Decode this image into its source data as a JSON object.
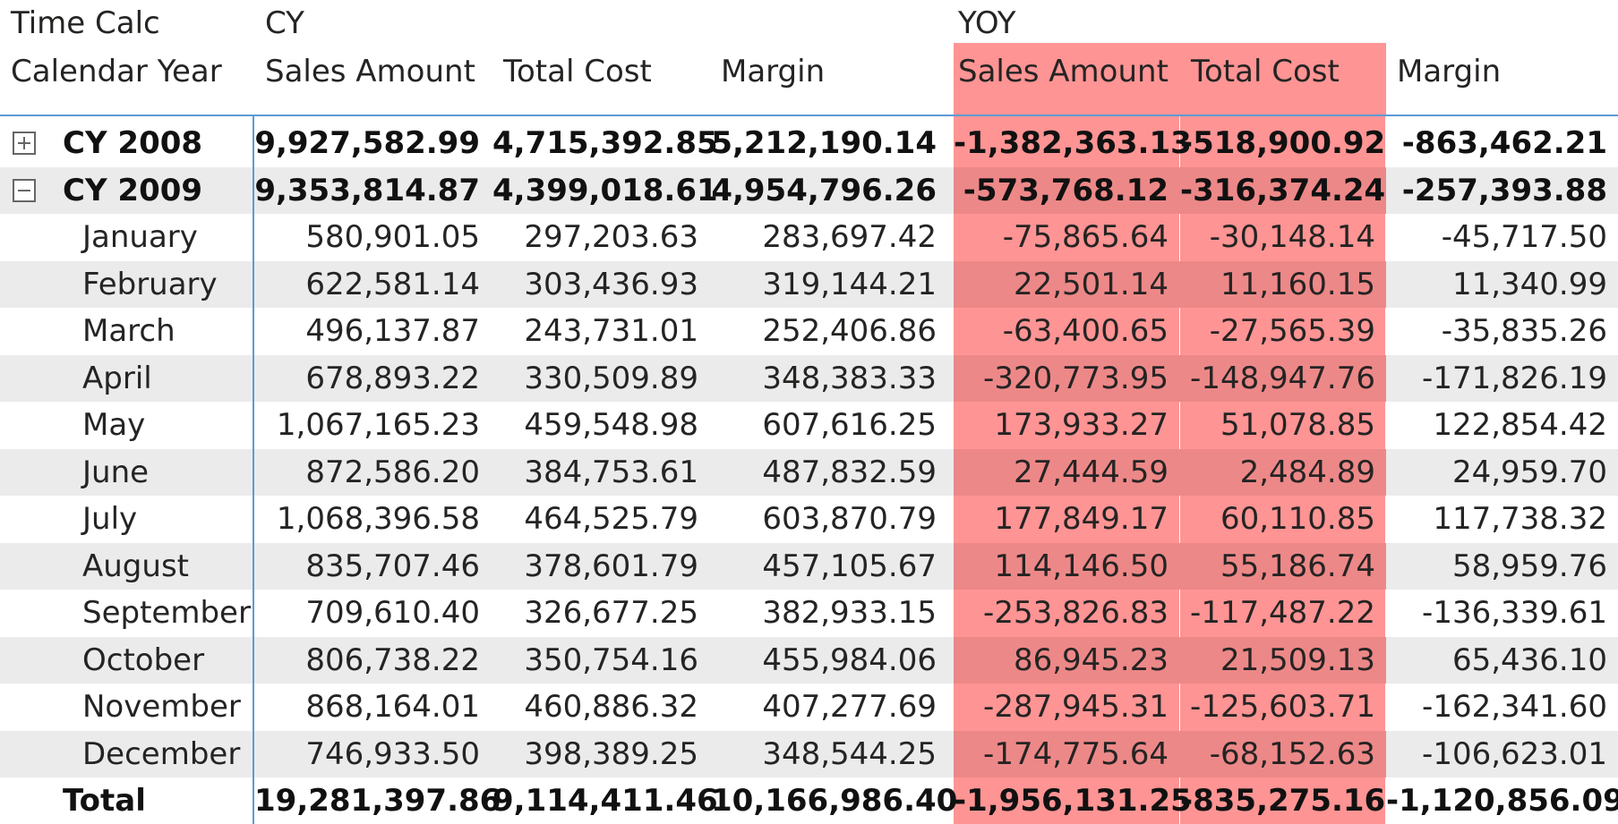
{
  "matrix": {
    "header": {
      "corner_top": "Time Calc",
      "corner_bottom": "Calendar Year",
      "groups": [
        "CY",
        "YOY"
      ],
      "columns": [
        "Sales Amount",
        "Total Cost",
        "Margin",
        "Sales Amount",
        "Total Cost",
        "Margin"
      ]
    },
    "highlight_color": "#ff9494",
    "header_line_color": "#5b9bd5",
    "rows": [
      {
        "label": "CY 2008",
        "level": 0,
        "bold": true,
        "toggle": "expand",
        "values": [
          "9,927,582.99",
          "4,715,392.85",
          "5,212,190.14",
          "-1,382,363.13",
          "-518,900.92",
          "-863,462.21"
        ]
      },
      {
        "label": "CY 2009",
        "level": 0,
        "bold": true,
        "toggle": "collapse",
        "values": [
          "9,353,814.87",
          "4,399,018.61",
          "4,954,796.26",
          "-573,768.12",
          "-316,374.24",
          "-257,393.88"
        ]
      },
      {
        "label": "January",
        "level": 1,
        "values": [
          "580,901.05",
          "297,203.63",
          "283,697.42",
          "-75,865.64",
          "-30,148.14",
          "-45,717.50"
        ]
      },
      {
        "label": "February",
        "level": 1,
        "values": [
          "622,581.14",
          "303,436.93",
          "319,144.21",
          "22,501.14",
          "11,160.15",
          "11,340.99"
        ]
      },
      {
        "label": "March",
        "level": 1,
        "values": [
          "496,137.87",
          "243,731.01",
          "252,406.86",
          "-63,400.65",
          "-27,565.39",
          "-35,835.26"
        ]
      },
      {
        "label": "April",
        "level": 1,
        "values": [
          "678,893.22",
          "330,509.89",
          "348,383.33",
          "-320,773.95",
          "-148,947.76",
          "-171,826.19"
        ]
      },
      {
        "label": "May",
        "level": 1,
        "values": [
          "1,067,165.23",
          "459,548.98",
          "607,616.25",
          "173,933.27",
          "51,078.85",
          "122,854.42"
        ]
      },
      {
        "label": "June",
        "level": 1,
        "values": [
          "872,586.20",
          "384,753.61",
          "487,832.59",
          "27,444.59",
          "2,484.89",
          "24,959.70"
        ]
      },
      {
        "label": "July",
        "level": 1,
        "values": [
          "1,068,396.58",
          "464,525.79",
          "603,870.79",
          "177,849.17",
          "60,110.85",
          "117,738.32"
        ]
      },
      {
        "label": "August",
        "level": 1,
        "values": [
          "835,707.46",
          "378,601.79",
          "457,105.67",
          "114,146.50",
          "55,186.74",
          "58,959.76"
        ]
      },
      {
        "label": "September",
        "level": 1,
        "values": [
          "709,610.40",
          "326,677.25",
          "382,933.15",
          "-253,826.83",
          "-117,487.22",
          "-136,339.61"
        ]
      },
      {
        "label": "October",
        "level": 1,
        "values": [
          "806,738.22",
          "350,754.16",
          "455,984.06",
          "86,945.23",
          "21,509.13",
          "65,436.10"
        ]
      },
      {
        "label": "November",
        "level": 1,
        "values": [
          "868,164.01",
          "460,886.32",
          "407,277.69",
          "-287,945.31",
          "-125,603.71",
          "-162,341.60"
        ]
      },
      {
        "label": "December",
        "level": 1,
        "values": [
          "746,933.50",
          "398,389.25",
          "348,544.25",
          "-174,775.64",
          "-68,152.63",
          "-106,623.01"
        ]
      },
      {
        "label": "Total",
        "level": 0,
        "bold": true,
        "total": true,
        "values": [
          "19,281,397.86",
          "9,114,411.46",
          "10,166,986.40",
          "-1,956,131.25",
          "-835,275.16",
          "-1,120,856.09"
        ]
      }
    ]
  }
}
